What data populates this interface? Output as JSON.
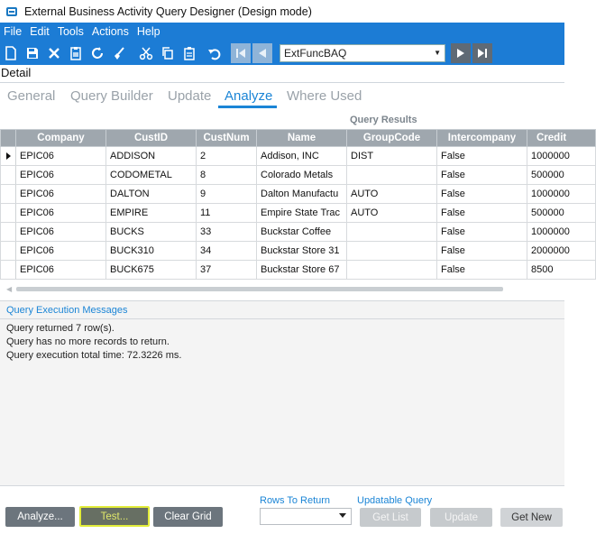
{
  "window": {
    "title": "External Business Activity Query Designer (Design mode)"
  },
  "menu": [
    "File",
    "Edit",
    "Tools",
    "Actions",
    "Help"
  ],
  "toolbar": {
    "icons": [
      "new-icon",
      "save-icon",
      "delete-icon",
      "clipboard-icon",
      "refresh-icon",
      "clear-icon",
      "cut-icon",
      "copy-icon",
      "paste-icon",
      "undo-icon"
    ],
    "baq_value": "ExtFuncBAQ"
  },
  "detail_label": "Detail",
  "tabs": [
    {
      "label": "General"
    },
    {
      "label": "Query Builder"
    },
    {
      "label": "Update"
    },
    {
      "label": "Analyze"
    },
    {
      "label": "Where Used"
    }
  ],
  "active_tab": "Analyze",
  "results": {
    "title": "Query Results",
    "columns": [
      "Company",
      "CustID",
      "CustNum",
      "Name",
      "GroupCode",
      "Intercompany",
      "Credit"
    ],
    "rows": [
      [
        "EPIC06",
        "ADDISON",
        "2",
        "Addison, INC",
        "DIST",
        "False",
        "1000000"
      ],
      [
        "EPIC06",
        "CODOMETAL",
        "8",
        "Colorado Metals",
        "",
        "False",
        "500000"
      ],
      [
        "EPIC06",
        "DALTON",
        "9",
        "Dalton Manufactu",
        "AUTO",
        "False",
        "1000000"
      ],
      [
        "EPIC06",
        "EMPIRE",
        "11",
        "Empire State Trac",
        "AUTO",
        "False",
        "500000"
      ],
      [
        "EPIC06",
        "BUCKS",
        "33",
        "Buckstar Coffee",
        "",
        "False",
        "1000000"
      ],
      [
        "EPIC06",
        "BUCK310",
        "34",
        "Buckstar Store 31",
        "",
        "False",
        "2000000"
      ],
      [
        "EPIC06",
        "BUCK675",
        "37",
        "Buckstar Store 67",
        "",
        "False",
        "8500"
      ]
    ]
  },
  "messages": {
    "title": "Query Execution Messages",
    "lines": [
      "Query returned 7 row(s).",
      "Query has no more records to return.",
      "Query execution total time: 72.3226 ms."
    ]
  },
  "bottom": {
    "analyze": "Analyze...",
    "test": "Test...",
    "clear_grid": "Clear Grid",
    "rows_to_return_label": "Rows To Return",
    "rows_to_return_value": "",
    "updatable_query_label": "Updatable Query",
    "get_list": "Get List",
    "update": "Update",
    "get_new": "Get New"
  },
  "colors": {
    "menu_bar": "#1c7cd5",
    "accent": "#1b85d6",
    "grid_header": "#9fa7ae",
    "button": "#6c757d",
    "highlight": "#e2ec3a"
  }
}
